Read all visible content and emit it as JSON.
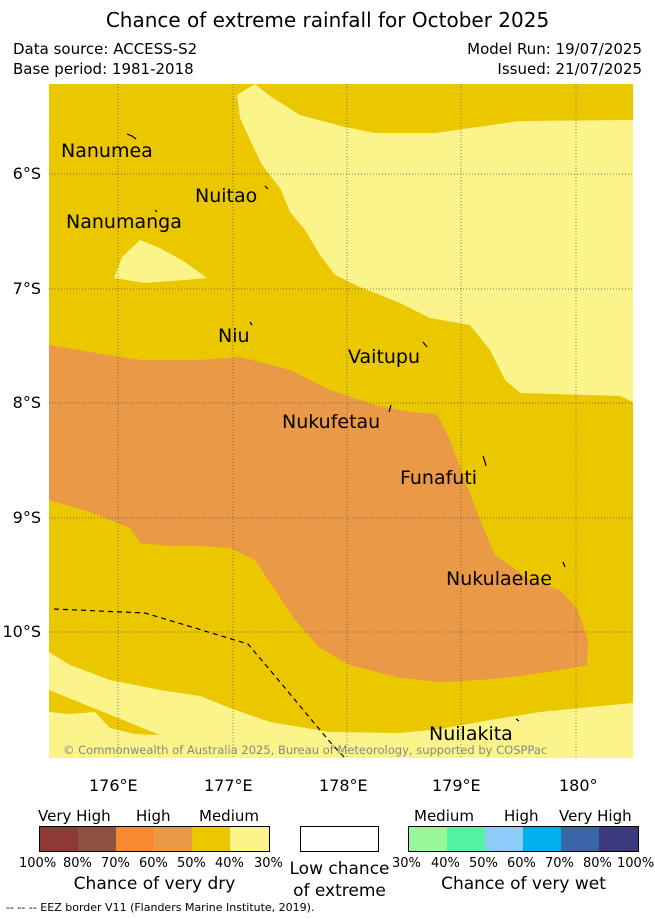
{
  "title": "Chance of extreme rainfall for October 2025",
  "meta": {
    "data_source": "Data source: ACCESS-S2",
    "base_period": "Base period: 1981-2018",
    "model_run": "Model Run: 19/07/2025",
    "issued": "Issued: 21/07/2025"
  },
  "map": {
    "lat_labels": [
      "6°S",
      "7°S",
      "8°S",
      "9°S",
      "10°S"
    ],
    "lon_labels": [
      "176°E",
      "177°E",
      "178°E",
      "179°E",
      "180°"
    ],
    "places": [
      "Nanumea",
      "Nuitao",
      "Nanumanga",
      "Niu",
      "Vaitupu",
      "Nukufetau",
      "Funafuti",
      "Nukulaelae",
      "Nuilakita"
    ],
    "copyright": "© Commonwealth of Australia 2025, Bureau of Meteorology, supported by COSPPac",
    "colors": {
      "medium_dry": "#ebc700",
      "low_dry": "#fbf48b",
      "high_dry": "#ea9a46",
      "grid": "#555555"
    }
  },
  "legend": {
    "dry": {
      "levels": [
        "Very High",
        "High",
        "Medium"
      ],
      "percents": [
        "100%",
        "80%",
        "70%",
        "60%",
        "50%",
        "40%",
        "30%"
      ],
      "colors": [
        "#8c3a33",
        "#8e5040",
        "#f78a31",
        "#ea9a46",
        "#ebc700",
        "#fbf48b"
      ],
      "caption": "Chance of very dry"
    },
    "low": {
      "line1": "Low chance",
      "line2": "of extreme",
      "color": "#ffffff"
    },
    "wet": {
      "levels": [
        "Medium",
        "High",
        "Very High"
      ],
      "percents": [
        "30%",
        "40%",
        "50%",
        "60%",
        "70%",
        "80%",
        "100%"
      ],
      "colors": [
        "#98f898",
        "#52f2a0",
        "#8ecbf8",
        "#00b0ee",
        "#3a66a8",
        "#3a3a7c"
      ],
      "caption": "Chance of very wet"
    }
  },
  "eez_note": "-- -- -- EEZ border V11 (Flanders Marine Institute, 2019)."
}
